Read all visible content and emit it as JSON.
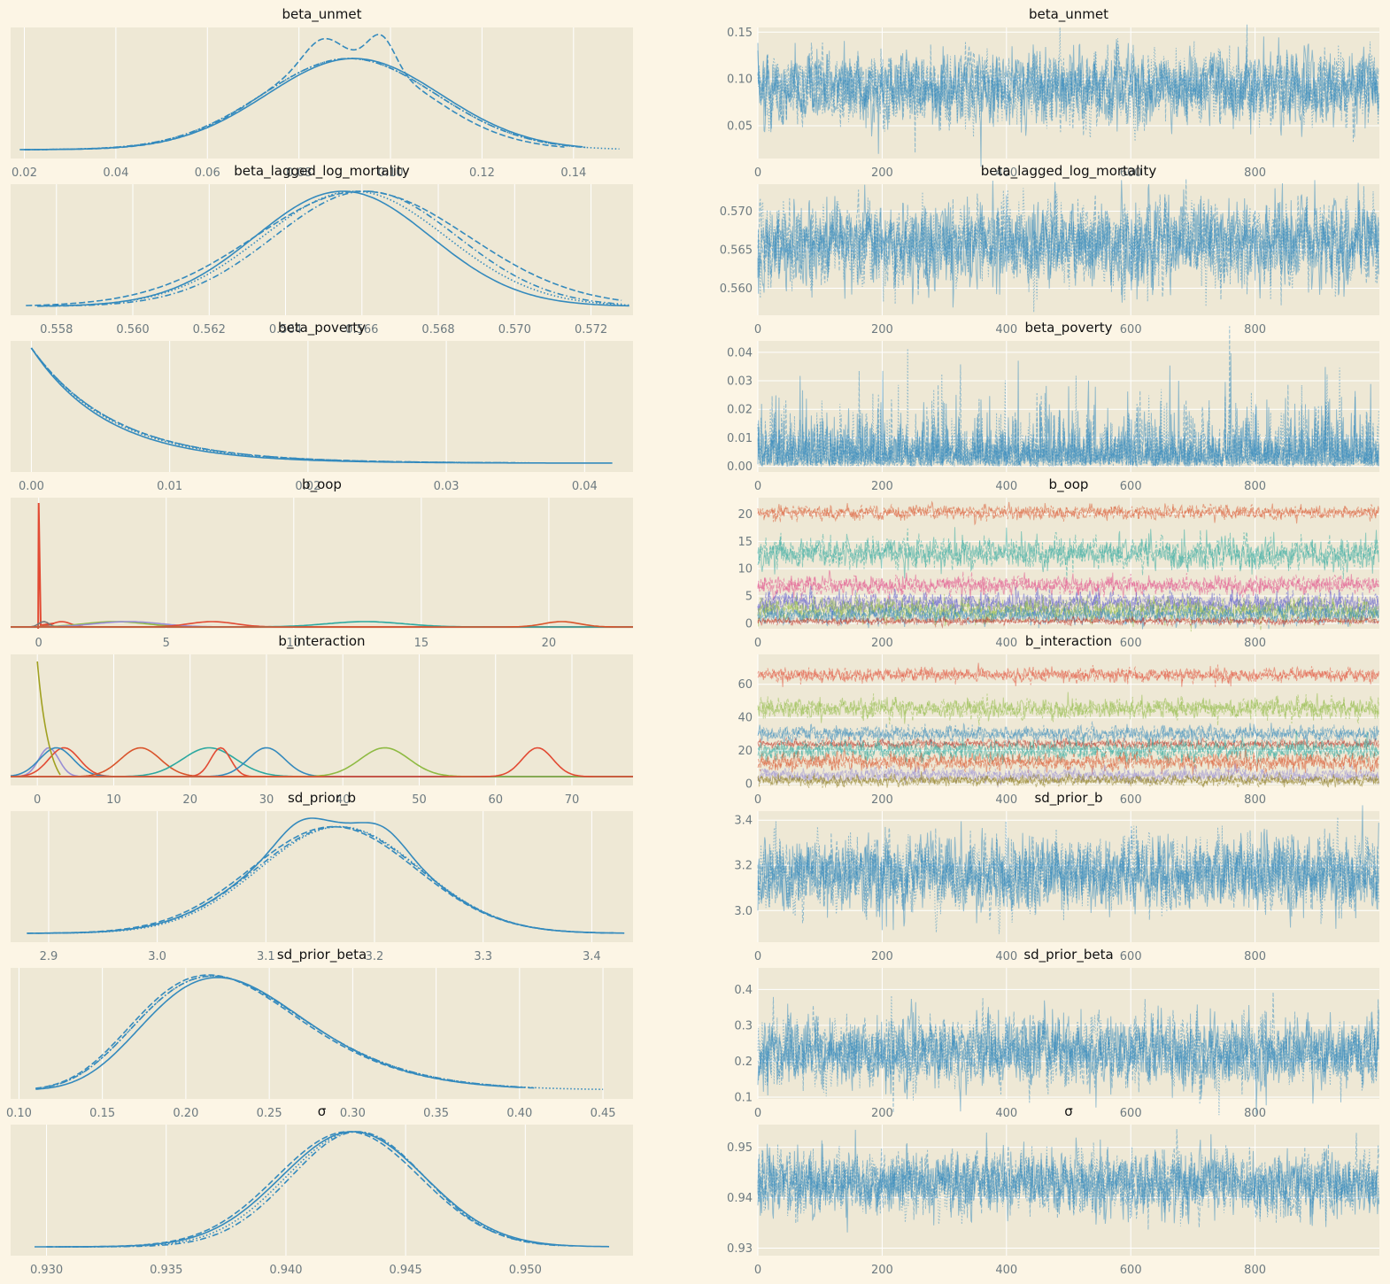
{
  "figure": {
    "background": "#fcf5e5",
    "panel_background": "#eee8d5",
    "grid_color": "#ffffff",
    "tick_label_color": "#6d7a80"
  },
  "chart_data": [
    {
      "type": "line",
      "kind": "kde",
      "title": "beta_unmet",
      "xlim": [
        0.017,
        0.153
      ],
      "xticks": [
        0.02,
        0.04,
        0.06,
        0.08,
        0.1,
        0.12,
        0.14
      ],
      "xtick_labels": [
        "0.02",
        "0.04",
        "0.06",
        "0.08",
        "0.10",
        "0.12",
        "0.14"
      ],
      "series": [
        {
          "color": "#348abd",
          "dash": "solid",
          "mean": 0.092,
          "sd": 0.019,
          "xmin": 0.019,
          "xmax": 0.142
        },
        {
          "color": "#348abd",
          "dash": "dashed",
          "mean": 0.09,
          "sd": 0.018,
          "xmin": 0.02,
          "xmax": 0.138,
          "bumps": [
            [
              0.085,
              0.004,
              0.25
            ],
            [
              0.098,
              0.003,
              0.35
            ]
          ]
        },
        {
          "color": "#348abd",
          "dash": "dotted",
          "mean": 0.091,
          "sd": 0.019,
          "xmin": 0.02,
          "xmax": 0.15
        },
        {
          "color": "#348abd",
          "dash": "dashdot",
          "mean": 0.091,
          "sd": 0.019,
          "xmin": 0.02,
          "xmax": 0.143
        }
      ]
    },
    {
      "type": "line",
      "kind": "trace",
      "title": "beta_unmet",
      "xlim": [
        0,
        1000
      ],
      "ylim": [
        0.015,
        0.155
      ],
      "xticks": [
        0,
        200,
        400,
        600,
        800
      ],
      "xtick_labels": [
        "0",
        "200",
        "400",
        "600",
        "800"
      ],
      "yticks": [
        0.05,
        0.1,
        0.15
      ],
      "ytick_labels": [
        "0.05",
        "0.10",
        "0.15"
      ],
      "n_draws": 1000,
      "series": [
        {
          "color": "#348abd",
          "mean": 0.091,
          "sd": 0.018,
          "chains": 4
        }
      ]
    },
    {
      "type": "line",
      "kind": "kde",
      "title": "beta_lagged_log_mortality",
      "xlim": [
        0.5568,
        0.5731
      ],
      "xticks": [
        0.558,
        0.56,
        0.562,
        0.564,
        0.566,
        0.568,
        0.57,
        0.572
      ],
      "xtick_labels": [
        "0.558",
        "0.560",
        "0.562",
        "0.564",
        "0.566",
        "0.568",
        "0.570",
        "0.572"
      ],
      "series": [
        {
          "color": "#348abd",
          "dash": "solid",
          "mean": 0.5655,
          "sd": 0.0023,
          "xmin": 0.5575,
          "xmax": 0.573
        },
        {
          "color": "#348abd",
          "dash": "dashed",
          "mean": 0.566,
          "sd": 0.0028,
          "xmin": 0.5572,
          "xmax": 0.5728
        },
        {
          "color": "#348abd",
          "dash": "dotted",
          "mean": 0.5658,
          "sd": 0.0024,
          "xmin": 0.5578,
          "xmax": 0.573
        },
        {
          "color": "#348abd",
          "dash": "dashdot",
          "mean": 0.5661,
          "sd": 0.0024,
          "xmin": 0.5575,
          "xmax": 0.5728
        }
      ]
    },
    {
      "type": "line",
      "kind": "trace",
      "title": "beta_lagged_log_mortality",
      "xlim": [
        0,
        1000
      ],
      "ylim": [
        0.5565,
        0.5735
      ],
      "xticks": [
        0,
        200,
        400,
        600,
        800
      ],
      "xtick_labels": [
        "0",
        "200",
        "400",
        "600",
        "800"
      ],
      "yticks": [
        0.56,
        0.565,
        0.57
      ],
      "ytick_labels": [
        "0.560",
        "0.565",
        "0.570"
      ],
      "n_draws": 1000,
      "series": [
        {
          "color": "#348abd",
          "mean": 0.5658,
          "sd": 0.0025,
          "chains": 4
        }
      ]
    },
    {
      "type": "line",
      "kind": "kde",
      "title": "beta_poverty",
      "xlim": [
        -0.0015,
        0.0435
      ],
      "xticks": [
        0.0,
        0.01,
        0.02,
        0.03,
        0.04
      ],
      "xtick_labels": [
        "0.00",
        "0.01",
        "0.02",
        "0.03",
        "0.04"
      ],
      "series": [
        {
          "color": "#348abd",
          "dash": "solid",
          "expo": 0.0055,
          "xmin": 0.0,
          "xmax": 0.042
        },
        {
          "color": "#348abd",
          "dash": "dashed",
          "expo": 0.006,
          "xmin": 0.0,
          "xmax": 0.035
        },
        {
          "color": "#348abd",
          "dash": "dotted",
          "expo": 0.0058,
          "xmin": 0.0,
          "xmax": 0.036
        },
        {
          "color": "#348abd",
          "dash": "dashdot",
          "expo": 0.006,
          "xmin": 0.0,
          "xmax": 0.034
        }
      ]
    },
    {
      "type": "line",
      "kind": "trace",
      "title": "beta_poverty",
      "xlim": [
        0,
        1000
      ],
      "ylim": [
        -0.002,
        0.044
      ],
      "xticks": [
        0,
        200,
        400,
        600,
        800
      ],
      "xtick_labels": [
        "0",
        "200",
        "400",
        "600",
        "800"
      ],
      "yticks": [
        0.0,
        0.01,
        0.02,
        0.03,
        0.04
      ],
      "ytick_labels": [
        "0.00",
        "0.01",
        "0.02",
        "0.03",
        "0.04"
      ],
      "n_draws": 1000,
      "series": [
        {
          "color": "#348abd",
          "expo": 0.0055,
          "chains": 4
        }
      ]
    },
    {
      "type": "line",
      "kind": "kde",
      "title": "b_oop",
      "xlim": [
        -1.1,
        23.3
      ],
      "xticks": [
        0,
        5,
        10,
        15,
        20
      ],
      "xtick_labels": [
        "0",
        "5",
        "10",
        "15",
        "20"
      ],
      "spike_at": 0,
      "series": [
        {
          "color": "#e24a33",
          "mean": 0.9,
          "sd": 0.35
        },
        {
          "color": "#777777",
          "mean": 0.2,
          "sd": 0.2
        },
        {
          "color": "#8eba42",
          "mean": 3.0,
          "sd": 1.2
        },
        {
          "color": "#988ed5",
          "mean": 3.5,
          "sd": 1.3
        },
        {
          "color": "#e24a33",
          "mean": 6.8,
          "sd": 0.9
        },
        {
          "color": "#2ca8a0",
          "mean": 12.8,
          "sd": 1.5
        },
        {
          "color": "#d9542b",
          "mean": 20.5,
          "sd": 0.7
        }
      ]
    },
    {
      "type": "line",
      "kind": "trace",
      "title": "b_oop",
      "xlim": [
        0,
        1000
      ],
      "ylim": [
        -1.0,
        23.0
      ],
      "xticks": [
        0,
        200,
        400,
        600,
        800
      ],
      "xtick_labels": [
        "0",
        "200",
        "400",
        "600",
        "800"
      ],
      "yticks": [
        0,
        5,
        10,
        15,
        20
      ],
      "ytick_labels": [
        "0",
        "5",
        "10",
        "15",
        "20"
      ],
      "n_draws": 1000,
      "series": [
        {
          "color": "#d9542b",
          "mean": 20.3,
          "sd": 0.6
        },
        {
          "color": "#2ca8a0",
          "mean": 12.8,
          "sd": 1.4
        },
        {
          "color": "#e24a8a",
          "mean": 7.0,
          "sd": 0.8
        },
        {
          "color": "#5a5ad0",
          "mean": 3.6,
          "sd": 1.0
        },
        {
          "color": "#8eba42",
          "mean": 2.4,
          "sd": 1.0
        },
        {
          "color": "#348abd",
          "mean": 1.5,
          "sd": 0.8
        },
        {
          "color": "#c0392b",
          "mean": 0.4,
          "sd": 0.3
        }
      ]
    },
    {
      "type": "line",
      "kind": "kde",
      "title": "b_interaction",
      "xlim": [
        -3.5,
        78.0
      ],
      "xticks": [
        0,
        10,
        20,
        30,
        40,
        50,
        60,
        70
      ],
      "xtick_labels": [
        "0",
        "10",
        "20",
        "30",
        "40",
        "50",
        "60",
        "70"
      ],
      "series": [
        {
          "color": "#988ed5",
          "mean": 1.5,
          "sd": 1.3
        },
        {
          "color": "#e24a33",
          "mean": 3.5,
          "sd": 2.0
        },
        {
          "color": "#348abd",
          "mean": 2.5,
          "sd": 2.2
        },
        {
          "color": "#d9542b",
          "mean": 13.5,
          "sd": 2.6
        },
        {
          "color": "#2ca8a0",
          "mean": 22.5,
          "sd": 3.5
        },
        {
          "color": "#e24a33",
          "mean": 24.0,
          "sd": 1.3
        },
        {
          "color": "#348abd",
          "mean": 30.0,
          "sd": 2.4
        },
        {
          "color": "#8eba42",
          "mean": 45.5,
          "sd": 3.2
        },
        {
          "color": "#e24a33",
          "mean": 65.5,
          "sd": 2.0
        }
      ]
    },
    {
      "type": "line",
      "kind": "trace",
      "title": "b_interaction",
      "xlim": [
        0,
        1000
      ],
      "ylim": [
        -1.0,
        78.0
      ],
      "xticks": [
        0,
        200,
        400,
        600,
        800
      ],
      "xtick_labels": [
        "0",
        "200",
        "400",
        "600",
        "800"
      ],
      "yticks": [
        0,
        20,
        40,
        60
      ],
      "ytick_labels": [
        "0",
        "20",
        "40",
        "60"
      ],
      "n_draws": 1000,
      "series": [
        {
          "color": "#e24a33",
          "mean": 65.5,
          "sd": 2.0
        },
        {
          "color": "#8eba42",
          "mean": 45.5,
          "sd": 3.0
        },
        {
          "color": "#348abd",
          "mean": 30.0,
          "sd": 2.3
        },
        {
          "color": "#c0392b",
          "mean": 24.0,
          "sd": 1.2
        },
        {
          "color": "#2ca8a0",
          "mean": 20.0,
          "sd": 3.0
        },
        {
          "color": "#d9542b",
          "mean": 13.0,
          "sd": 2.5
        },
        {
          "color": "#988ed5",
          "mean": 5.0,
          "sd": 2.0
        },
        {
          "color": "#8b7a1a",
          "mean": 2.0,
          "sd": 1.5
        }
      ]
    },
    {
      "type": "line",
      "kind": "kde",
      "title": "sd_prior_b",
      "xlim": [
        2.865,
        3.438
      ],
      "xticks": [
        2.9,
        3.0,
        3.1,
        3.2,
        3.3,
        3.4
      ],
      "xtick_labels": [
        "2.9",
        "3.0",
        "3.1",
        "3.2",
        "3.3",
        "3.4"
      ],
      "series": [
        {
          "color": "#348abd",
          "dash": "solid",
          "mean": 3.165,
          "sd": 0.075,
          "xmin": 2.88,
          "xmax": 3.43,
          "bumps": [
            [
              3.13,
              0.02,
              0.15
            ],
            [
              3.21,
              0.02,
              0.15
            ]
          ]
        },
        {
          "color": "#348abd",
          "dash": "dashed",
          "mean": 3.162,
          "sd": 0.076,
          "xmin": 2.88,
          "xmax": 3.42
        },
        {
          "color": "#348abd",
          "dash": "dotted",
          "mean": 3.168,
          "sd": 0.074,
          "xmin": 2.9,
          "xmax": 3.41
        },
        {
          "color": "#348abd",
          "dash": "dashdot",
          "mean": 3.166,
          "sd": 0.075,
          "xmin": 2.89,
          "xmax": 3.42
        }
      ]
    },
    {
      "type": "line",
      "kind": "trace",
      "title": "sd_prior_b",
      "xlim": [
        0,
        1000
      ],
      "ylim": [
        2.86,
        3.44
      ],
      "xticks": [
        0,
        200,
        400,
        600,
        800
      ],
      "xtick_labels": [
        "0",
        "200",
        "400",
        "600",
        "800"
      ],
      "yticks": [
        3.0,
        3.2,
        3.4
      ],
      "ytick_labels": [
        "3.0",
        "3.2",
        "3.4"
      ],
      "n_draws": 1000,
      "series": [
        {
          "color": "#348abd",
          "mean": 3.165,
          "sd": 0.075,
          "chains": 4
        }
      ]
    },
    {
      "type": "line",
      "kind": "kde",
      "title": "sd_prior_beta",
      "xlim": [
        0.095,
        0.468
      ],
      "xticks": [
        0.1,
        0.15,
        0.2,
        0.25,
        0.3,
        0.35,
        0.4,
        0.45
      ],
      "xtick_labels": [
        "0.10",
        "0.15",
        "0.20",
        "0.25",
        "0.30",
        "0.35",
        "0.40",
        "0.45"
      ],
      "series": [
        {
          "color": "#348abd",
          "dash": "solid",
          "lognorm_mu": -1.47,
          "lognorm_s": 0.22,
          "xmin": 0.11,
          "xmax": 0.4
        },
        {
          "color": "#348abd",
          "dash": "dashed",
          "lognorm_mu": -1.49,
          "lognorm_s": 0.23,
          "xmin": 0.11,
          "xmax": 0.41
        },
        {
          "color": "#348abd",
          "dash": "dotted",
          "lognorm_mu": -1.48,
          "lognorm_s": 0.23,
          "xmin": 0.11,
          "xmax": 0.45
        },
        {
          "color": "#348abd",
          "dash": "dashdot",
          "lognorm_mu": -1.48,
          "lognorm_s": 0.23,
          "xmin": 0.11,
          "xmax": 0.4
        }
      ]
    },
    {
      "type": "line",
      "kind": "trace",
      "title": "sd_prior_beta",
      "xlim": [
        0,
        1000
      ],
      "ylim": [
        0.095,
        0.46
      ],
      "xticks": [
        0,
        200,
        400,
        600,
        800
      ],
      "xtick_labels": [
        "0",
        "200",
        "400",
        "600",
        "800"
      ],
      "yticks": [
        0.1,
        0.2,
        0.3,
        0.4
      ],
      "ytick_labels": [
        "0.1",
        "0.2",
        "0.3",
        "0.4"
      ],
      "n_draws": 1000,
      "series": [
        {
          "color": "#348abd",
          "mean": 0.225,
          "sd": 0.045,
          "chains": 4
        }
      ]
    },
    {
      "type": "line",
      "kind": "kde",
      "title": "σ",
      "xlim": [
        0.9285,
        0.9545
      ],
      "xticks": [
        0.93,
        0.935,
        0.94,
        0.945,
        0.95
      ],
      "xtick_labels": [
        "0.930",
        "0.935",
        "0.940",
        "0.945",
        "0.950"
      ],
      "series": [
        {
          "color": "#348abd",
          "dash": "solid",
          "mean": 0.9428,
          "sd": 0.003,
          "xmin": 0.9295,
          "xmax": 0.9535
        },
        {
          "color": "#348abd",
          "dash": "dashed",
          "mean": 0.9426,
          "sd": 0.003,
          "xmin": 0.93,
          "xmax": 0.952
        },
        {
          "color": "#348abd",
          "dash": "dotted",
          "mean": 0.9429,
          "sd": 0.0029,
          "xmin": 0.9305,
          "xmax": 0.951
        },
        {
          "color": "#348abd",
          "dash": "dashdot",
          "mean": 0.943,
          "sd": 0.0028,
          "xmin": 0.93,
          "xmax": 0.9515
        }
      ]
    },
    {
      "type": "line",
      "kind": "trace",
      "title": "σ",
      "xlim": [
        0,
        1000
      ],
      "ylim": [
        0.9285,
        0.9545
      ],
      "xticks": [
        0,
        200,
        400,
        600,
        800
      ],
      "xtick_labels": [
        "0",
        "200",
        "400",
        "600",
        "800"
      ],
      "yticks": [
        0.93,
        0.94,
        0.95
      ],
      "ytick_labels": [
        "0.93",
        "0.94",
        "0.95"
      ],
      "n_draws": 1000,
      "series": [
        {
          "color": "#348abd",
          "mean": 0.9428,
          "sd": 0.0029,
          "chains": 4
        }
      ]
    }
  ]
}
